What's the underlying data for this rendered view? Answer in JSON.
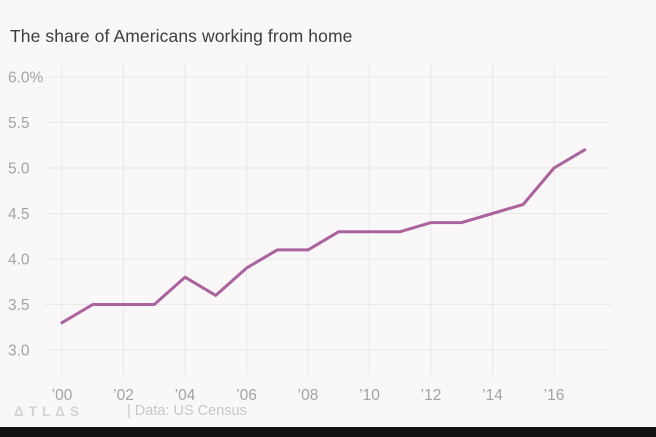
{
  "header": {
    "title": "The share of Americans working from home"
  },
  "chart_data": {
    "type": "line",
    "title": "The share of Americans working from home",
    "x": [
      2000,
      2001,
      2002,
      2003,
      2004,
      2005,
      2006,
      2007,
      2008,
      2009,
      2010,
      2011,
      2012,
      2013,
      2014,
      2015,
      2016,
      2017
    ],
    "values": [
      3.3,
      3.5,
      3.5,
      3.5,
      3.8,
      3.6,
      3.9,
      4.1,
      4.1,
      4.3,
      4.3,
      4.3,
      4.4,
      4.4,
      4.5,
      4.6,
      5.0,
      5.2
    ],
    "xlabel": "",
    "ylabel": "",
    "ylim": [
      3.0,
      6.0
    ],
    "xlim": [
      2000,
      2017
    ],
    "grid": true,
    "legend": "none",
    "y_ticks": {
      "values": [
        6.0,
        5.5,
        5.0,
        4.5,
        4.0,
        3.5,
        3.0
      ],
      "labels": [
        "6.0%",
        "5.5",
        "5.0",
        "4.5",
        "4.0",
        "3.5",
        "3.0"
      ]
    },
    "x_ticks": {
      "values": [
        2000,
        2002,
        2004,
        2006,
        2008,
        2010,
        2012,
        2014,
        2016
      ],
      "labels": [
        "’00",
        "’02",
        "’04",
        "’06",
        "’08",
        "’10",
        "’12",
        "’14",
        "’16"
      ]
    },
    "line_color": "#aa639c",
    "grid_color": "#eae7e9",
    "tick_color": "#a5a2a3",
    "background_color": "#f9f7f8"
  },
  "footer": {
    "logo": "ΔTLΔS",
    "source": "| Data: US Census"
  }
}
